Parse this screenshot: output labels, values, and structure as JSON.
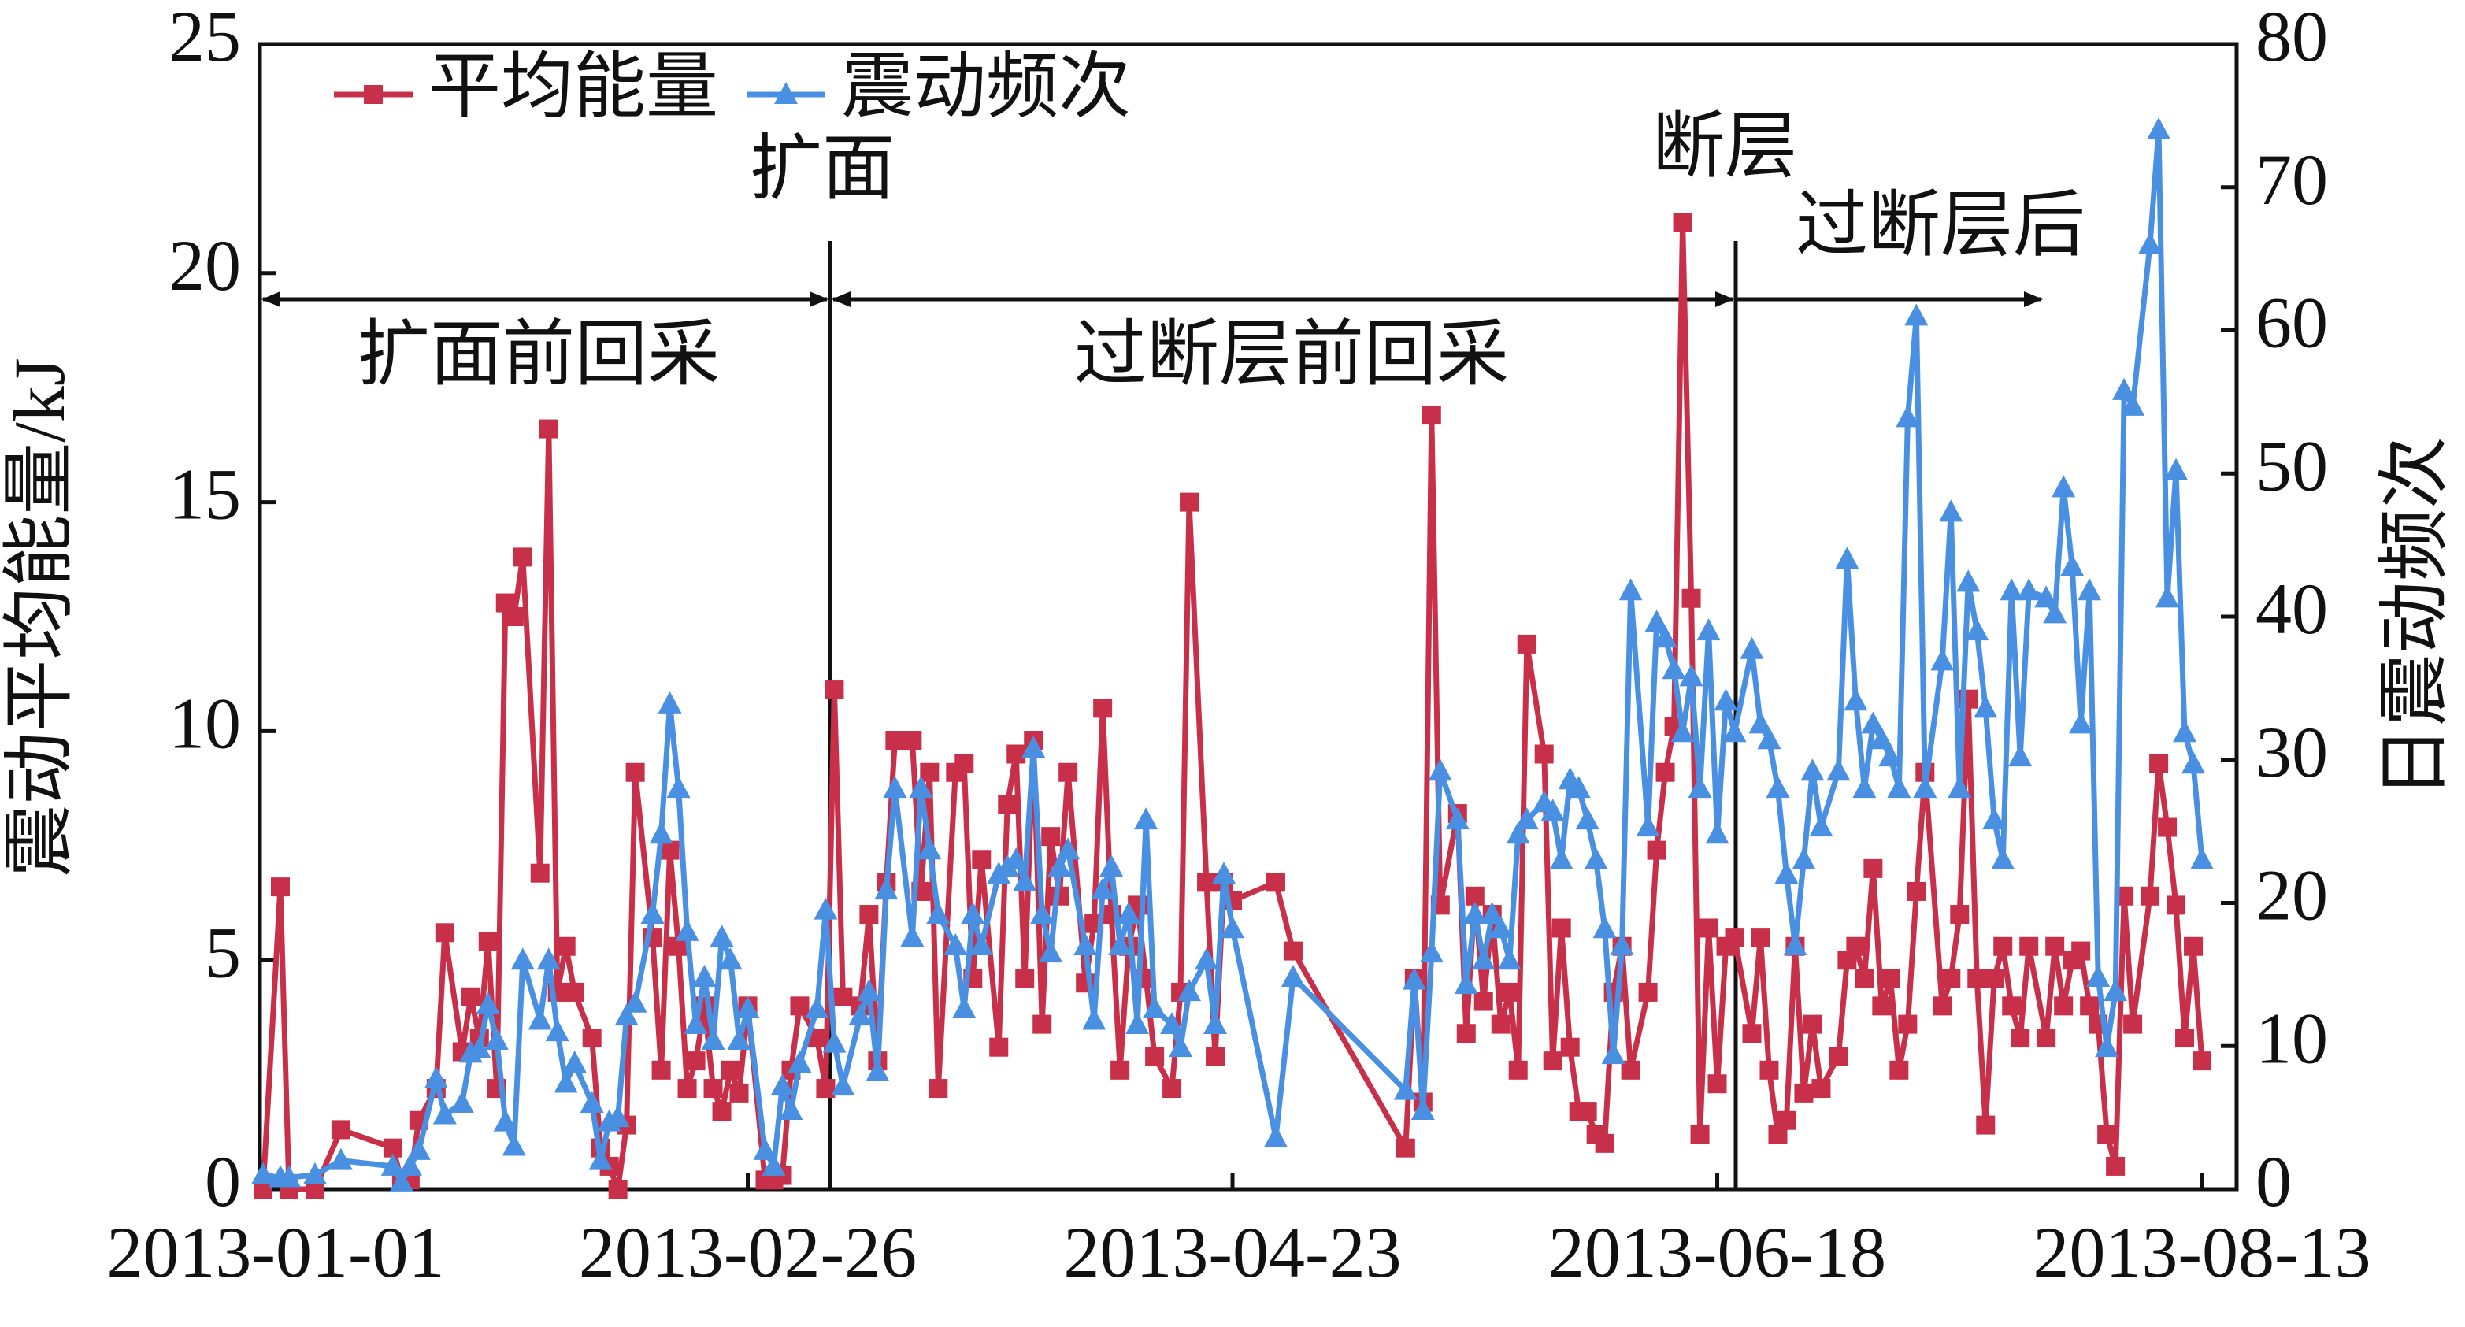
{
  "chart_data": {
    "type": "line",
    "x": [
      "2013-01-01",
      "2013-01-03",
      "2013-01-04",
      "2013-01-07",
      "2013-01-10",
      "2013-01-16",
      "2013-01-17",
      "2013-01-18",
      "2013-01-19",
      "2013-01-21",
      "2013-01-22",
      "2013-01-24",
      "2013-01-25",
      "2013-01-26",
      "2013-01-27",
      "2013-01-28",
      "2013-01-29",
      "2013-01-30",
      "2013-01-31",
      "2013-02-02",
      "2013-02-03",
      "2013-02-04",
      "2013-02-05",
      "2013-02-06",
      "2013-02-08",
      "2013-02-09",
      "2013-02-10",
      "2013-02-11",
      "2013-02-12",
      "2013-02-13",
      "2013-02-15",
      "2013-02-16",
      "2013-02-17",
      "2013-02-18",
      "2013-02-19",
      "2013-02-20",
      "2013-02-21",
      "2013-02-22",
      "2013-02-23",
      "2013-02-24",
      "2013-02-25",
      "2013-02-26",
      "2013-02-28",
      "2013-03-01",
      "2013-03-02",
      "2013-03-03",
      "2013-03-04",
      "2013-03-06",
      "2013-03-07",
      "2013-03-08",
      "2013-03-09",
      "2013-03-11",
      "2013-03-12",
      "2013-03-13",
      "2013-03-14",
      "2013-03-15",
      "2013-03-17",
      "2013-03-18",
      "2013-03-19",
      "2013-03-20",
      "2013-03-22",
      "2013-03-23",
      "2013-03-24",
      "2013-03-25",
      "2013-03-27",
      "2013-03-28",
      "2013-03-29",
      "2013-03-30",
      "2013-03-31",
      "2013-04-01",
      "2013-04-02",
      "2013-04-03",
      "2013-04-04",
      "2013-04-06",
      "2013-04-07",
      "2013-04-08",
      "2013-04-09",
      "2013-04-10",
      "2013-04-11",
      "2013-04-12",
      "2013-04-13",
      "2013-04-14",
      "2013-04-16",
      "2013-04-17",
      "2013-04-18",
      "2013-04-20",
      "2013-04-21",
      "2013-04-22",
      "2013-04-23",
      "2013-04-28",
      "2013-04-30",
      "2013-05-13",
      "2013-05-14",
      "2013-05-15",
      "2013-05-16",
      "2013-05-17",
      "2013-05-19",
      "2013-05-20",
      "2013-05-21",
      "2013-05-22",
      "2013-05-23",
      "2013-05-24",
      "2013-05-25",
      "2013-05-26",
      "2013-05-27",
      "2013-05-29",
      "2013-05-30",
      "2013-05-31",
      "2013-06-01",
      "2013-06-02",
      "2013-06-03",
      "2013-06-04",
      "2013-06-05",
      "2013-06-06",
      "2013-06-07",
      "2013-06-08",
      "2013-06-10",
      "2013-06-11",
      "2013-06-12",
      "2013-06-13",
      "2013-06-14",
      "2013-06-15",
      "2013-06-16",
      "2013-06-17",
      "2013-06-18",
      "2013-06-19",
      "2013-06-20",
      "2013-06-22",
      "2013-06-23",
      "2013-06-24",
      "2013-06-25",
      "2013-06-26",
      "2013-06-27",
      "2013-06-28",
      "2013-06-29",
      "2013-06-30",
      "2013-07-02",
      "2013-07-03",
      "2013-07-04",
      "2013-07-05",
      "2013-07-06",
      "2013-07-07",
      "2013-07-08",
      "2013-07-09",
      "2013-07-10",
      "2013-07-11",
      "2013-07-12",
      "2013-07-14",
      "2013-07-15",
      "2013-07-16",
      "2013-07-17",
      "2013-07-18",
      "2013-07-19",
      "2013-07-20",
      "2013-07-21",
      "2013-07-22",
      "2013-07-23",
      "2013-07-24",
      "2013-07-26",
      "2013-07-27",
      "2013-07-28",
      "2013-07-29",
      "2013-07-30",
      "2013-07-31",
      "2013-08-01",
      "2013-08-02",
      "2013-08-03",
      "2013-08-04",
      "2013-08-05",
      "2013-08-07",
      "2013-08-08",
      "2013-08-09",
      "2013-08-10",
      "2013-08-11",
      "2013-08-12",
      "2013-08-13"
    ],
    "series": [
      {
        "name": "平均能量",
        "color": "#c8304a",
        "marker": "square",
        "values": [
          0,
          6.6,
          0,
          0,
          1.3,
          0.9,
          0.2,
          0.2,
          1.5,
          2.2,
          5.6,
          3,
          4.2,
          3.3,
          5.4,
          2.2,
          12.8,
          12.5,
          13.8,
          6.9,
          16.6,
          4.3,
          5.3,
          4.3,
          3.3,
          0.9,
          0.5,
          0,
          1.4,
          9.1,
          5.5,
          2.6,
          7.4,
          5.3,
          2.2,
          2.8,
          4,
          2.2,
          1.7,
          2.6,
          2.1,
          4,
          0.2,
          0.2,
          0.3,
          2.6,
          4,
          3.3,
          2.2,
          10.9,
          4.2,
          4,
          6,
          2.8,
          6.7,
          9.8,
          9.8,
          6.5,
          9.1,
          2.2,
          9.1,
          9.3,
          4.6,
          7.2,
          3.1,
          8.4,
          9.5,
          4.6,
          9.8,
          3.6,
          7.7,
          6.4,
          9.1,
          4.5,
          5.8,
          10.5,
          6,
          2.6,
          5.3,
          6.2,
          4.6,
          2.9,
          2.2,
          4.3,
          15,
          6.7,
          2.9,
          6.7,
          6.3,
          6.7,
          5.2,
          0.9,
          4.6,
          1.9,
          16.9,
          6.2,
          8.2,
          3.4,
          6.4,
          4.1,
          6,
          3.6,
          4.3,
          2.6,
          11.9,
          9.5,
          2.8,
          5.7,
          3.1,
          1.7,
          1.7,
          1.2,
          1,
          4.3,
          5.3,
          2.6,
          4.3,
          7.4,
          9.1,
          10.1,
          21.1,
          12.9,
          1.2,
          5.7,
          2.3,
          5.3,
          5.5,
          3.4,
          5.5,
          2.6,
          1.2,
          1.5,
          5.3,
          2.1,
          3.6,
          2.2,
          2.9,
          5,
          5.3,
          4.6,
          7,
          4,
          4.6,
          2.6,
          3.6,
          6.5,
          9.1,
          4,
          4.6,
          6,
          10.7,
          4.6,
          1.4,
          4.6,
          5.3,
          4,
          3.3,
          5.3,
          3.3,
          5.3,
          4,
          5,
          5.2,
          4,
          3.6,
          1.2,
          0.5,
          6.4,
          3.6,
          6.4,
          9.3,
          7.9,
          6.2,
          3.3,
          5.3,
          2.8
        ]
      },
      {
        "name": "震动频次",
        "color": "#4a90e2",
        "marker": "triangle",
        "axis": "y2",
        "values": [
          1,
          0.8,
          0.8,
          1,
          2,
          1.6,
          0.5,
          1.6,
          2.7,
          7.7,
          5.2,
          6,
          9.5,
          9.8,
          12.9,
          10.4,
          4.7,
          3,
          16,
          11.8,
          16,
          11,
          7.4,
          8.8,
          6,
          2,
          4.7,
          5,
          12.1,
          13,
          19.2,
          24.8,
          33.9,
          28,
          18,
          11.5,
          14.8,
          10.4,
          17.6,
          16,
          10.4,
          12.6,
          2.7,
          1.6,
          7.2,
          5.5,
          8.8,
          12.6,
          19.5,
          10.2,
          7.2,
          12.1,
          13.8,
          8.2,
          20.9,
          28,
          17.6,
          28,
          23.7,
          19.2,
          17,
          12.6,
          19.2,
          17,
          22,
          22.5,
          23,
          21.5,
          30.8,
          19.2,
          16.5,
          22.5,
          23.7,
          17,
          11.8,
          20.9,
          22.5,
          17,
          19.2,
          11.5,
          25.8,
          12.6,
          11.5,
          9.9,
          13.8,
          16,
          11.5,
          22,
          18.2,
          3.6,
          14.8,
          6.9,
          14.6,
          5.5,
          16.5,
          29.2,
          25.8,
          14.3,
          19.2,
          16,
          19.2,
          18.2,
          16,
          24.8,
          25.8,
          27,
          26.4,
          23,
          28.6,
          28,
          25.8,
          23,
          18.2,
          9.4,
          17,
          41.8,
          25.3,
          39.6,
          38.5,
          36.3,
          31.9,
          35.8,
          28,
          39,
          24.8,
          34.1,
          31.9,
          37.7,
          32.5,
          31.4,
          28,
          22,
          17,
          23,
          29.2,
          25.3,
          29.2,
          44,
          34.1,
          28,
          32.5,
          31.4,
          30.2,
          28,
          53.9,
          61,
          28,
          36.9,
          47.3,
          28,
          42.4,
          39,
          33.6,
          25.8,
          23,
          41.8,
          30.2,
          41.8,
          41.3,
          40.2,
          49,
          43.5,
          32.5,
          41.8,
          14.8,
          9.9,
          13.8,
          55.8,
          54.7,
          66,
          74,
          41.3,
          50.2,
          31.9,
          29.7,
          23
        ]
      }
    ],
    "xlim": [
      "2013-01-01",
      "2013-08-17"
    ],
    "xticks": [
      "2013-01-01",
      "2013-02-26",
      "2013-04-23",
      "2013-06-18",
      "2013-08-13"
    ],
    "ylim": [
      0,
      25
    ],
    "yticks": [
      0,
      5,
      10,
      15,
      20,
      25
    ],
    "y2lim": [
      0,
      80
    ],
    "y2ticks": [
      0,
      10,
      20,
      30,
      40,
      50,
      60,
      70,
      80
    ],
    "ylabel": "震动平均能量/kJ",
    "y2label": "日震动频次",
    "legend": "upper left",
    "annotations": [
      "扩面",
      "断层",
      "扩面前回采",
      "过断层前回采",
      "过断层后"
    ]
  }
}
